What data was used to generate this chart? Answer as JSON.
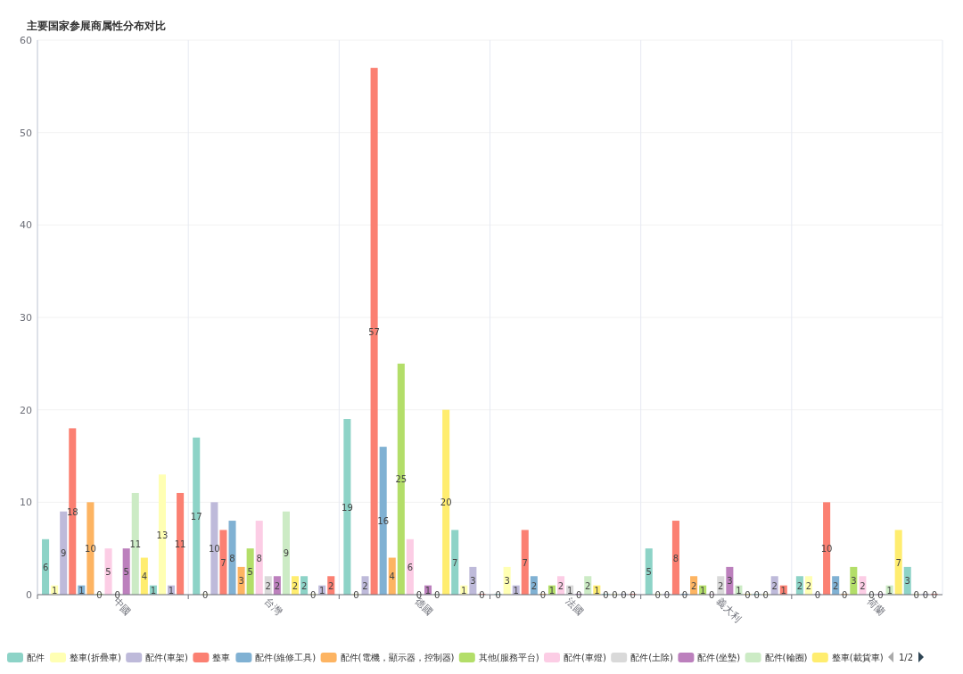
{
  "chart_data": {
    "type": "bar",
    "title": "主要国家参展商属性分布对比",
    "categories": [
      "中國",
      "台灣",
      "德國",
      "法國",
      "義大利",
      "荷蘭"
    ],
    "ylim": [
      0,
      60
    ],
    "yticks": [
      0,
      10,
      20,
      30,
      40,
      50,
      60
    ],
    "grid": true,
    "legend": "bottom",
    "data_labels": true,
    "annotations": [
      "1/2"
    ],
    "series": [
      {
        "name": "配件",
        "color": "#8dd3c7",
        "values": [
          6,
          17,
          19,
          0,
          5,
          2
        ]
      },
      {
        "name": "整車(折疊車)",
        "color": "#ffffb3",
        "values": [
          1,
          0,
          0,
          3,
          0,
          2
        ]
      },
      {
        "name": "配件(車架)",
        "color": "#bebada",
        "values": [
          9,
          10,
          2,
          1,
          0,
          0
        ]
      },
      {
        "name": "整車",
        "color": "#fb8072",
        "values": [
          18,
          7,
          57,
          7,
          8,
          10
        ]
      },
      {
        "name": "配件(維修工具)",
        "color": "#80b1d3",
        "values": [
          1,
          8,
          16,
          2,
          0,
          2
        ]
      },
      {
        "name": "配件(電機，顯示器，控制器)",
        "color": "#fdb462",
        "values": [
          10,
          3,
          4,
          0,
          2,
          0
        ]
      },
      {
        "name": "其他(服務平台)",
        "color": "#b3de69",
        "values": [
          0,
          5,
          25,
          1,
          1,
          3
        ]
      },
      {
        "name": "配件(車燈)",
        "color": "#fccde5",
        "values": [
          5,
          8,
          6,
          2,
          0,
          2
        ]
      },
      {
        "name": "配件(土除)",
        "color": "#d9d9d9",
        "values": [
          0,
          2,
          0,
          1,
          2,
          0
        ]
      },
      {
        "name": "配件(坐墊)",
        "color": "#bc80bd",
        "values": [
          5,
          2,
          1,
          0,
          3,
          0
        ]
      },
      {
        "name": "配件(輪圈)",
        "color": "#ccebc5",
        "values": [
          11,
          9,
          0,
          2,
          1,
          1
        ]
      },
      {
        "name": "整車(載貨車)",
        "color": "#ffed6f",
        "values": [
          4,
          2,
          20,
          1,
          0,
          7
        ]
      },
      {
        "color": "#8dd3c7",
        "values": [
          1,
          2,
          7,
          0,
          0,
          3
        ]
      },
      {
        "color": "#ffffb3",
        "values": [
          13,
          0,
          1,
          0,
          0,
          0
        ]
      },
      {
        "color": "#bebada",
        "values": [
          1,
          1,
          3,
          0,
          2,
          0
        ]
      },
      {
        "color": "#fb8072",
        "values": [
          11,
          2,
          0,
          0,
          1,
          0
        ]
      }
    ]
  }
}
